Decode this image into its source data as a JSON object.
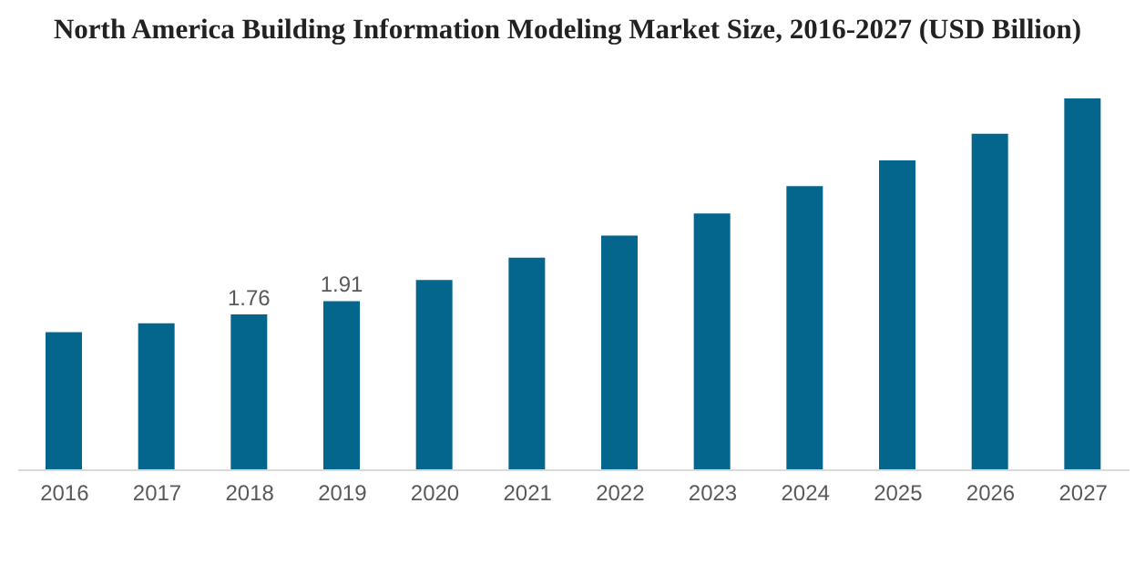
{
  "chart_data": {
    "type": "bar",
    "title": "North America Building Information Modeling Market Size, 2016-2027 (USD Billion)",
    "categories": [
      "2016",
      "2017",
      "2018",
      "2019",
      "2020",
      "2021",
      "2022",
      "2023",
      "2024",
      "2025",
      "2026",
      "2027"
    ],
    "values": [
      1.56,
      1.66,
      1.76,
      1.91,
      2.15,
      2.4,
      2.65,
      2.9,
      3.21,
      3.5,
      3.8,
      4.2
    ],
    "value_labels": [
      null,
      null,
      "1.76",
      "1.91",
      null,
      null,
      null,
      null,
      null,
      null,
      null,
      null
    ],
    "color": "#05668d",
    "tick_labels": "x"
  }
}
